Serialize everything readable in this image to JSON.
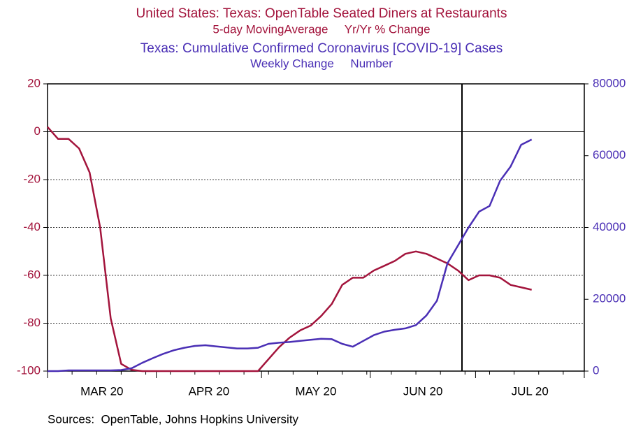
{
  "chart_data": {
    "type": "line",
    "title": "United States: Texas: OpenTable Seated Diners at Restaurants",
    "subtitle": "5-day MovingAverage     Yr/Yr % Change",
    "title2": "Texas: Cumulative Confirmed Coronavirus [COVID-19] Cases",
    "subtitle2": "Weekly Change     Number",
    "source": "Sources:  OpenTable, Johns Hopkins University",
    "x_labels": [
      "MAR 20",
      "APR 20",
      "MAY 20",
      "JUN 20",
      "JUL 20"
    ],
    "ylim": [
      -100,
      20
    ],
    "yticks": [
      20,
      0,
      -20,
      -40,
      -60,
      -80,
      -100
    ],
    "y2lim": [
      0,
      80000
    ],
    "y2ticks": [
      80000,
      60000,
      40000,
      20000,
      0
    ],
    "grid": true,
    "series": [
      {
        "name": "United States: Texas: OpenTable Seated Diners at Restaurants",
        "color": "#a3143c",
        "axis": "y",
        "values": [
          2,
          -3,
          -3,
          -7,
          -17,
          -40,
          -78,
          -97,
          -99.5,
          -100,
          -100,
          -100,
          -100,
          -100,
          -100,
          -100,
          -100,
          -100,
          -100,
          -100,
          -100,
          -95,
          -90,
          -86,
          -83,
          -81,
          -77,
          -72,
          -64,
          -61,
          -61,
          -58,
          -56,
          -54,
          -51,
          -50,
          -51,
          -53,
          -55,
          -58,
          -62,
          -60,
          -60,
          -61,
          -64,
          -65,
          -66
        ]
      },
      {
        "name": "Texas: Cumulative Confirmed Coronavirus [COVID-19] Cases",
        "color": "#4a2fb5",
        "axis": "y2",
        "values": [
          0,
          0,
          200,
          200,
          200,
          200,
          200,
          300,
          800,
          2300,
          3600,
          4800,
          5800,
          6500,
          7000,
          7200,
          6900,
          6600,
          6300,
          6300,
          6500,
          7600,
          7900,
          8100,
          8400,
          8700,
          9000,
          8900,
          7600,
          6800,
          8400,
          10000,
          11000,
          11500,
          11900,
          12800,
          15500,
          19600,
          30000,
          35000,
          40000,
          44400,
          46000,
          53000,
          57000,
          63000,
          64500
        ]
      }
    ]
  }
}
